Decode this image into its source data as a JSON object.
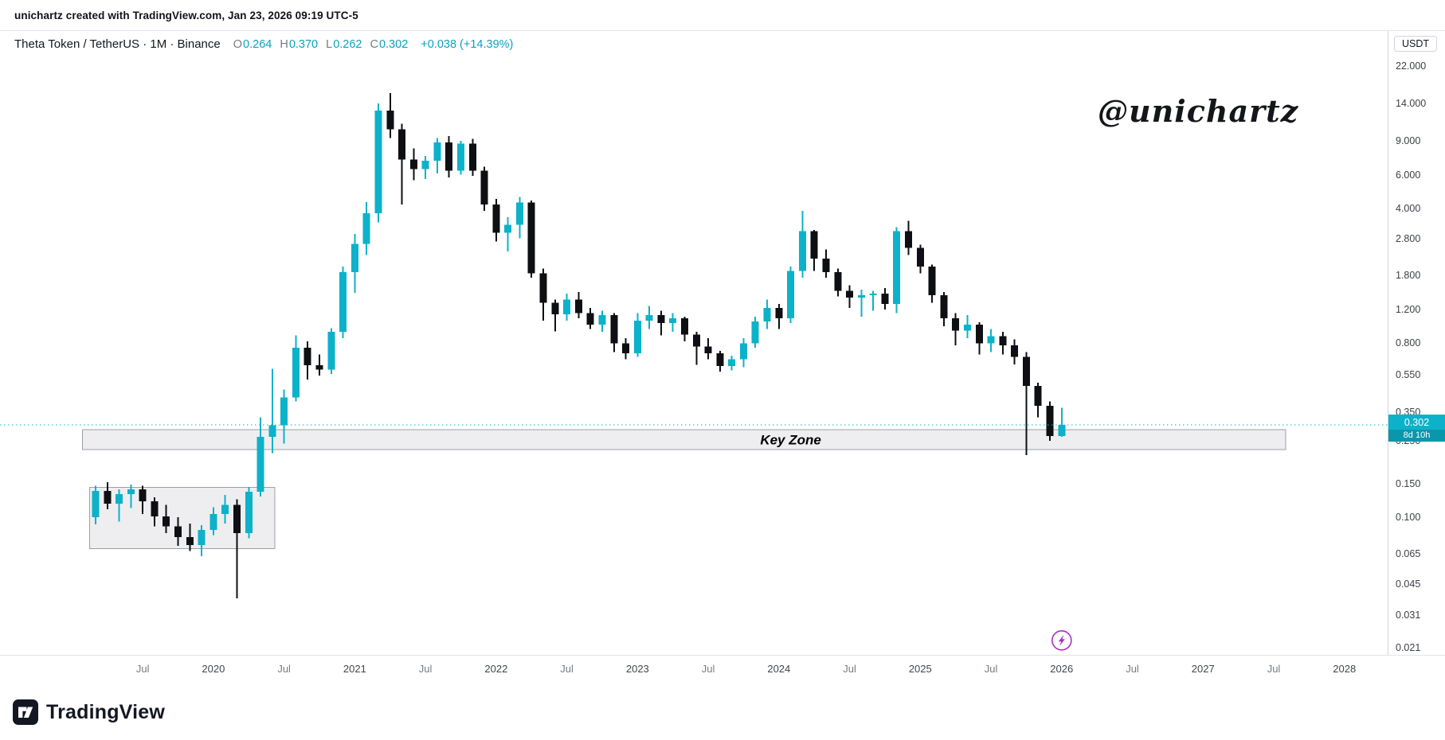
{
  "header": {
    "credit": "unichartz created with TradingView.com, Jan 23, 2026 09:19 UTC-5"
  },
  "symbol": {
    "title": "Theta Token / TetherUS · 1M · Binance",
    "ohlc": [
      {
        "label": "O",
        "value": "0.264"
      },
      {
        "label": "H",
        "value": "0.370"
      },
      {
        "label": "L",
        "value": "0.262"
      },
      {
        "label": "C",
        "value": "0.302"
      }
    ],
    "change": "+0.038 (+14.39%)"
  },
  "watermark": "@unichartz",
  "price_scale": {
    "currency": "USDT",
    "last_price": "0.302",
    "countdown": "8d 10h"
  },
  "footer": {
    "brand": "TradingView"
  },
  "colors": {
    "up": "#0cb2c9",
    "down": "#0e0f12",
    "last_price_line": "#0cb2c9",
    "badge_bg": "#0cb2c9",
    "badge_countdown_bg": "#0a97ab",
    "zone_fill": "rgba(149,152,161,0.16)",
    "zone_border": "#9aa0a6",
    "event": "#aa31c4",
    "value_text": "#0aa3bd"
  },
  "chart_data": {
    "type": "candlestick",
    "symbol": "Theta Token / TetherUS",
    "exchange": "Binance",
    "timeframe": "1M",
    "y_scale": "log",
    "ylim": [
      0.019,
      24
    ],
    "grid": false,
    "last_price": 0.302,
    "y_ticks": [
      "22.000",
      "14.000",
      "9.000",
      "6.000",
      "4.000",
      "2.800",
      "1.800",
      "1.200",
      "0.800",
      "0.550",
      "0.350",
      "0.250",
      "0.150",
      "0.100",
      "0.065",
      "0.045",
      "0.031",
      "0.021"
    ],
    "x_tick_labels": [
      {
        "text": "Jul",
        "m": 4
      },
      {
        "text": "2020",
        "m": 10
      },
      {
        "text": "Jul",
        "m": 16
      },
      {
        "text": "2021",
        "m": 22
      },
      {
        "text": "Jul",
        "m": 28
      },
      {
        "text": "2022",
        "m": 34
      },
      {
        "text": "Jul",
        "m": 40
      },
      {
        "text": "2023",
        "m": 46
      },
      {
        "text": "Jul",
        "m": 52
      },
      {
        "text": "2024",
        "m": 58
      },
      {
        "text": "Jul",
        "m": 64
      },
      {
        "text": "2025",
        "m": 70
      },
      {
        "text": "Jul",
        "m": 76
      },
      {
        "text": "2026",
        "m": 82
      },
      {
        "text": "Jul",
        "m": 88
      },
      {
        "text": "2027",
        "m": 94
      },
      {
        "text": "Jul",
        "m": 100
      },
      {
        "text": "2028",
        "m": 106
      }
    ],
    "columns": [
      "month",
      "open",
      "high",
      "low",
      "close"
    ],
    "rows": [
      [
        "2019-03",
        0.1,
        0.146,
        0.092,
        0.137
      ],
      [
        "2019-04",
        0.137,
        0.152,
        0.11,
        0.118
      ],
      [
        "2019-05",
        0.118,
        0.14,
        0.095,
        0.132
      ],
      [
        "2019-06",
        0.132,
        0.148,
        0.112,
        0.14
      ],
      [
        "2019-07",
        0.14,
        0.146,
        0.104,
        0.121
      ],
      [
        "2019-08",
        0.121,
        0.127,
        0.09,
        0.101
      ],
      [
        "2019-09",
        0.101,
        0.116,
        0.083,
        0.09
      ],
      [
        "2019-10",
        0.09,
        0.1,
        0.071,
        0.079
      ],
      [
        "2019-11",
        0.079,
        0.093,
        0.067,
        0.072
      ],
      [
        "2019-12",
        0.072,
        0.091,
        0.063,
        0.086
      ],
      [
        "2020-01",
        0.086,
        0.113,
        0.081,
        0.104
      ],
      [
        "2020-02",
        0.104,
        0.131,
        0.093,
        0.116
      ],
      [
        "2020-03",
        0.116,
        0.124,
        0.038,
        0.083
      ],
      [
        "2020-04",
        0.083,
        0.144,
        0.078,
        0.136
      ],
      [
        "2020-05",
        0.136,
        0.33,
        0.128,
        0.262
      ],
      [
        "2020-06",
        0.262,
        0.59,
        0.215,
        0.3
      ],
      [
        "2020-07",
        0.3,
        0.46,
        0.242,
        0.42
      ],
      [
        "2020-08",
        0.42,
        0.88,
        0.4,
        0.76
      ],
      [
        "2020-09",
        0.76,
        0.82,
        0.52,
        0.615
      ],
      [
        "2020-10",
        0.615,
        0.7,
        0.545,
        0.585
      ],
      [
        "2020-11",
        0.585,
        0.96,
        0.555,
        0.92
      ],
      [
        "2020-12",
        0.92,
        2.0,
        0.85,
        1.87
      ],
      [
        "2021-01",
        1.87,
        2.95,
        1.46,
        2.62
      ],
      [
        "2021-02",
        2.62,
        4.32,
        2.3,
        3.78
      ],
      [
        "2021-03",
        3.78,
        14.05,
        3.4,
        12.9
      ],
      [
        "2021-04",
        12.9,
        15.9,
        9.3,
        10.3
      ],
      [
        "2021-05",
        10.3,
        11.0,
        4.2,
        7.2
      ],
      [
        "2021-06",
        7.2,
        8.2,
        5.6,
        6.4
      ],
      [
        "2021-07",
        6.4,
        7.5,
        5.7,
        7.1
      ],
      [
        "2021-08",
        7.1,
        9.3,
        6.1,
        8.8
      ],
      [
        "2021-09",
        8.8,
        9.5,
        5.8,
        6.3
      ],
      [
        "2021-10",
        6.3,
        9.0,
        6.0,
        8.7
      ],
      [
        "2021-11",
        8.7,
        9.2,
        5.9,
        6.3
      ],
      [
        "2021-12",
        6.3,
        6.6,
        3.9,
        4.2
      ],
      [
        "2022-01",
        4.2,
        4.5,
        2.7,
        3.0
      ],
      [
        "2022-02",
        3.0,
        3.6,
        2.4,
        3.3
      ],
      [
        "2022-03",
        3.3,
        4.6,
        2.8,
        4.3
      ],
      [
        "2022-04",
        4.3,
        4.4,
        1.75,
        1.85
      ],
      [
        "2022-05",
        1.85,
        1.95,
        1.05,
        1.3
      ],
      [
        "2022-06",
        1.3,
        1.35,
        0.92,
        1.13
      ],
      [
        "2022-07",
        1.13,
        1.45,
        1.05,
        1.35
      ],
      [
        "2022-08",
        1.35,
        1.48,
        1.08,
        1.15
      ],
      [
        "2022-09",
        1.15,
        1.22,
        0.95,
        1.0
      ],
      [
        "2022-10",
        1.0,
        1.18,
        0.92,
        1.12
      ],
      [
        "2022-11",
        1.12,
        1.15,
        0.72,
        0.8
      ],
      [
        "2022-12",
        0.8,
        0.85,
        0.66,
        0.71
      ],
      [
        "2023-01",
        0.71,
        1.15,
        0.68,
        1.05
      ],
      [
        "2023-02",
        1.05,
        1.25,
        0.95,
        1.12
      ],
      [
        "2023-03",
        1.12,
        1.18,
        0.88,
        1.02
      ],
      [
        "2023-04",
        1.02,
        1.15,
        0.92,
        1.08
      ],
      [
        "2023-05",
        1.08,
        1.1,
        0.82,
        0.89
      ],
      [
        "2023-06",
        0.89,
        0.92,
        0.62,
        0.77
      ],
      [
        "2023-07",
        0.77,
        0.85,
        0.66,
        0.71
      ],
      [
        "2023-08",
        0.71,
        0.73,
        0.57,
        0.61
      ],
      [
        "2023-09",
        0.61,
        0.69,
        0.58,
        0.66
      ],
      [
        "2023-10",
        0.66,
        0.85,
        0.6,
        0.8
      ],
      [
        "2023-11",
        0.8,
        1.1,
        0.76,
        1.04
      ],
      [
        "2023-12",
        1.04,
        1.35,
        0.95,
        1.22
      ],
      [
        "2024-01",
        1.22,
        1.28,
        0.95,
        1.08
      ],
      [
        "2024-02",
        1.08,
        2.0,
        1.02,
        1.9
      ],
      [
        "2024-03",
        1.9,
        3.9,
        1.75,
        3.05
      ],
      [
        "2024-04",
        3.05,
        3.1,
        1.9,
        2.2
      ],
      [
        "2024-05",
        2.2,
        2.45,
        1.75,
        1.87
      ],
      [
        "2024-06",
        1.87,
        1.95,
        1.4,
        1.5
      ],
      [
        "2024-07",
        1.5,
        1.6,
        1.22,
        1.38
      ],
      [
        "2024-08",
        1.38,
        1.52,
        1.1,
        1.42
      ],
      [
        "2024-09",
        1.42,
        1.5,
        1.18,
        1.45
      ],
      [
        "2024-10",
        1.45,
        1.55,
        1.2,
        1.28
      ],
      [
        "2024-11",
        1.28,
        3.2,
        1.15,
        3.05
      ],
      [
        "2024-12",
        3.05,
        3.45,
        2.3,
        2.5
      ],
      [
        "2025-01",
        2.5,
        2.6,
        1.85,
        2.0
      ],
      [
        "2025-02",
        2.0,
        2.05,
        1.3,
        1.42
      ],
      [
        "2025-03",
        1.42,
        1.48,
        0.98,
        1.08
      ],
      [
        "2025-04",
        1.08,
        1.15,
        0.78,
        0.93
      ],
      [
        "2025-05",
        0.93,
        1.12,
        0.85,
        1.0
      ],
      [
        "2025-06",
        1.0,
        1.03,
        0.7,
        0.8
      ],
      [
        "2025-07",
        0.8,
        0.95,
        0.72,
        0.87
      ],
      [
        "2025-08",
        0.87,
        0.92,
        0.7,
        0.78
      ],
      [
        "2025-09",
        0.78,
        0.84,
        0.62,
        0.68
      ],
      [
        "2025-10",
        0.68,
        0.72,
        0.21,
        0.48
      ],
      [
        "2025-11",
        0.48,
        0.5,
        0.33,
        0.38
      ],
      [
        "2025-12",
        0.38,
        0.4,
        0.25,
        0.264
      ],
      [
        "2026-01",
        0.264,
        0.37,
        0.262,
        0.302
      ]
    ],
    "annotations": {
      "key_zone": {
        "label": "Key Zone",
        "price_top": 0.285,
        "price_bottom": 0.225,
        "from_month": -1.1,
        "to_month": 101,
        "label_at_month": 59
      },
      "base_box": {
        "price_top": 0.143,
        "price_bottom": 0.069,
        "from_month": -0.5,
        "to_month": 15.2
      },
      "event_marker": {
        "shape": "lightning-circle",
        "month": 82,
        "price": 0.023
      }
    }
  }
}
